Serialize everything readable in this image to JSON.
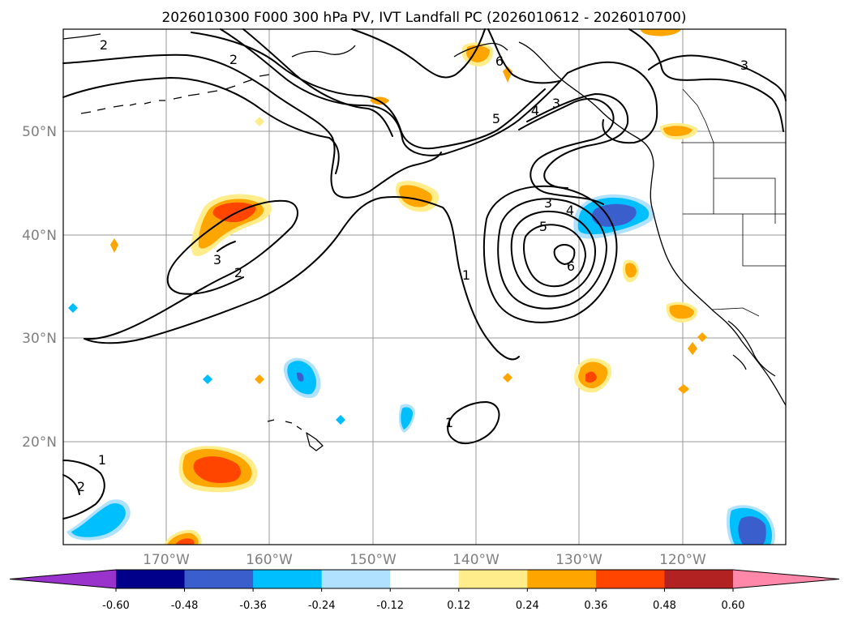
{
  "title": "2026010300 F000 300 hPa PV, IVT Landfall PC (2026010612 - 2026010700)",
  "latitude_labels": [
    "50°N",
    "40°N",
    "30°N",
    "20°N"
  ],
  "longitude_labels": [
    "170°W",
    "160°W",
    "150°W",
    "140°W",
    "130°W",
    "120°W"
  ],
  "colorbar": {
    "colors": [
      "#9933cc",
      "#00008b",
      "#3a5fcd",
      "#00bfff",
      "#b0e2ff",
      "#ffffff",
      "#ffec8b",
      "#ffa500",
      "#ff4500",
      "#b22222",
      "#ff88aa"
    ],
    "ticks": [
      "-0.60",
      "-0.48",
      "-0.36",
      "-0.24",
      "-0.12",
      "0.12",
      "0.24",
      "0.36",
      "0.48",
      "0.60"
    ]
  },
  "contour_labels": [
    "2",
    "2",
    "3",
    "2",
    "6",
    "5",
    "4",
    "3",
    "3",
    "4",
    "5",
    "6",
    "1",
    "1",
    "1",
    "2",
    "3"
  ],
  "features": {
    "contour_layer": "300 hPa PV contours",
    "shading_layer": "IVT landfall principal component",
    "coastline_layer": "coastlines and borders"
  }
}
